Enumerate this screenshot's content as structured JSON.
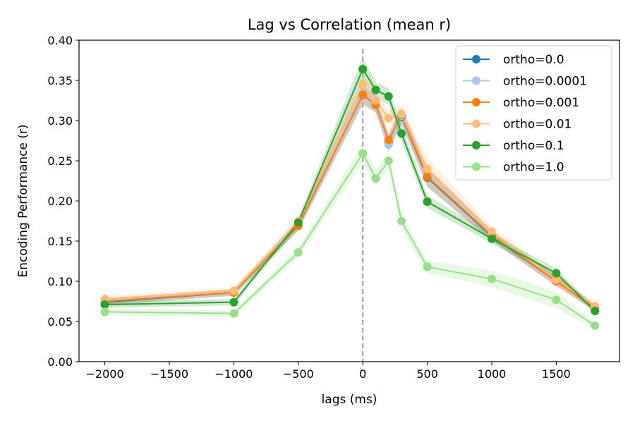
{
  "chart_data": {
    "type": "line",
    "title": "Lag vs Correlation (mean r)",
    "xlabel": "lags (ms)",
    "ylabel": "Encoding Performance (r)",
    "xlim": [
      -2200,
      1990
    ],
    "ylim": [
      0.0,
      0.4
    ],
    "xticks": [
      -2000,
      -1500,
      -1000,
      -500,
      0,
      500,
      1000,
      1500
    ],
    "xtick_labels": [
      "−2000",
      "−1500",
      "−1000",
      "−500",
      "0",
      "500",
      "1000",
      "1500"
    ],
    "yticks": [
      0.0,
      0.05,
      0.1,
      0.15,
      0.2,
      0.25,
      0.3,
      0.35,
      0.4
    ],
    "ytick_labels": [
      "0.00",
      "0.05",
      "0.10",
      "0.15",
      "0.20",
      "0.25",
      "0.30",
      "0.35",
      "0.40"
    ],
    "grid": false,
    "legend_position": "top-right",
    "vline": {
      "x": 0,
      "style": "dashed",
      "color": "#a0a0a0"
    },
    "x": [
      -2000,
      -1000,
      -500,
      0,
      100,
      200,
      300,
      500,
      1000,
      1500,
      1800
    ],
    "series": [
      {
        "name": "ortho=0.0",
        "color": "#1f77b4",
        "values": [
          0.074,
          0.086,
          0.169,
          0.332,
          0.32,
          0.272,
          0.305,
          0.229,
          0.156,
          0.1,
          0.067
        ],
        "err": [
          0.004,
          0.004,
          0.006,
          0.012,
          0.01,
          0.01,
          0.01,
          0.012,
          0.006,
          0.006,
          0.004
        ]
      },
      {
        "name": "ortho=0.0001",
        "color": "#aec7e8",
        "values": [
          0.075,
          0.087,
          0.17,
          0.334,
          0.321,
          0.27,
          0.306,
          0.231,
          0.157,
          0.101,
          0.068
        ],
        "err": [
          0.004,
          0.004,
          0.006,
          0.012,
          0.01,
          0.01,
          0.01,
          0.012,
          0.006,
          0.006,
          0.004
        ]
      },
      {
        "name": "ortho=0.001",
        "color": "#ff7f0e",
        "values": [
          0.075,
          0.086,
          0.169,
          0.332,
          0.32,
          0.276,
          0.307,
          0.23,
          0.157,
          0.1,
          0.067
        ],
        "err": [
          0.004,
          0.004,
          0.006,
          0.012,
          0.01,
          0.01,
          0.01,
          0.012,
          0.006,
          0.006,
          0.004
        ]
      },
      {
        "name": "ortho=0.01",
        "color": "#ffbb78",
        "values": [
          0.078,
          0.088,
          0.175,
          0.345,
          0.325,
          0.303,
          0.308,
          0.24,
          0.162,
          0.102,
          0.069
        ],
        "err": [
          0.004,
          0.004,
          0.006,
          0.012,
          0.01,
          0.01,
          0.01,
          0.014,
          0.006,
          0.006,
          0.004
        ]
      },
      {
        "name": "ortho=0.1",
        "color": "#2ca02c",
        "values": [
          0.071,
          0.074,
          0.173,
          0.364,
          0.338,
          0.33,
          0.284,
          0.199,
          0.153,
          0.11,
          0.063
        ],
        "err": [
          0.004,
          0.004,
          0.006,
          0.015,
          0.01,
          0.01,
          0.01,
          0.008,
          0.006,
          0.006,
          0.004
        ]
      },
      {
        "name": "ortho=1.0",
        "color": "#98df8a",
        "values": [
          0.062,
          0.06,
          0.136,
          0.259,
          0.228,
          0.25,
          0.175,
          0.118,
          0.103,
          0.077,
          0.045
        ],
        "err": [
          0.004,
          0.004,
          0.006,
          0.012,
          0.01,
          0.01,
          0.01,
          0.008,
          0.01,
          0.01,
          0.004
        ]
      }
    ]
  }
}
